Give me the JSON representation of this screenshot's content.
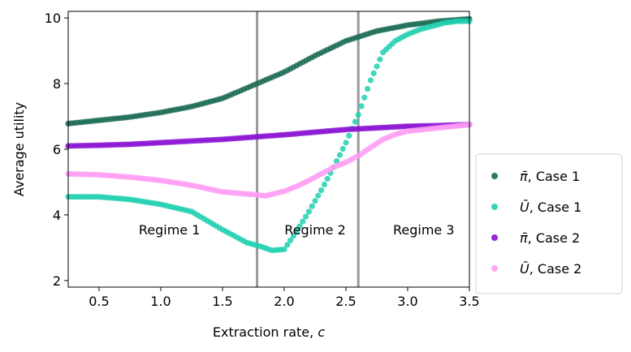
{
  "chart_data": {
    "type": "scatter",
    "xlabel": "Extraction rate, c",
    "ylabel": "Average utility",
    "xlim": [
      0.25,
      3.5
    ],
    "ylim": [
      1.8,
      10.2
    ],
    "x_ticks": [
      0.5,
      1.0,
      1.5,
      2.0,
      2.5,
      3.0,
      3.5
    ],
    "y_ticks": [
      2,
      4,
      6,
      8,
      10
    ],
    "x_tick_labels": [
      "0.5",
      "1.0",
      "1.5",
      "2.0",
      "2.5",
      "3.0",
      "3.5"
    ],
    "y_tick_labels": [
      "2",
      "4",
      "6",
      "8",
      "10"
    ],
    "vertical_lines": [
      1.78,
      2.6
    ],
    "regimes": [
      {
        "label": "Regime 1",
        "x": 1.07,
        "y": 3.55
      },
      {
        "label": "Regime 2",
        "x": 2.25,
        "y": 3.55
      },
      {
        "label": "Regime 3",
        "x": 3.13,
        "y": 3.55
      }
    ],
    "legend_position": "outside-right-bottom",
    "series": [
      {
        "name": "π̄, Case 1",
        "color": "#1a6b55",
        "points": [
          [
            0.25,
            6.78
          ],
          [
            0.5,
            6.88
          ],
          [
            0.75,
            6.98
          ],
          [
            1.0,
            7.12
          ],
          [
            1.25,
            7.3
          ],
          [
            1.5,
            7.55
          ],
          [
            1.75,
            7.95
          ],
          [
            2.0,
            8.35
          ],
          [
            2.25,
            8.85
          ],
          [
            2.5,
            9.3
          ],
          [
            2.75,
            9.6
          ],
          [
            3.0,
            9.78
          ],
          [
            3.25,
            9.9
          ],
          [
            3.5,
            9.97
          ]
        ]
      },
      {
        "name": "Ū, Case 1",
        "color": "#20d0b0",
        "points": [
          [
            0.25,
            4.55
          ],
          [
            0.5,
            4.55
          ],
          [
            0.75,
            4.47
          ],
          [
            1.0,
            4.32
          ],
          [
            1.25,
            4.1
          ],
          [
            1.5,
            3.55
          ],
          [
            1.7,
            3.15
          ],
          [
            1.8,
            3.05
          ],
          [
            1.9,
            2.92
          ],
          [
            2.0,
            2.95
          ],
          [
            2.1,
            3.5
          ],
          [
            2.2,
            4.1
          ],
          [
            2.3,
            4.75
          ],
          [
            2.4,
            5.45
          ],
          [
            2.5,
            6.2
          ],
          [
            2.6,
            7.05
          ],
          [
            2.7,
            8.1
          ],
          [
            2.8,
            8.95
          ],
          [
            2.9,
            9.3
          ],
          [
            3.0,
            9.5
          ],
          [
            3.1,
            9.65
          ],
          [
            3.2,
            9.75
          ],
          [
            3.3,
            9.85
          ],
          [
            3.4,
            9.9
          ],
          [
            3.5,
            9.9
          ]
        ]
      },
      {
        "name": "π̄, Case 2",
        "color": "#8a12d4",
        "points": [
          [
            0.25,
            6.1
          ],
          [
            0.5,
            6.12
          ],
          [
            0.75,
            6.15
          ],
          [
            1.0,
            6.2
          ],
          [
            1.25,
            6.25
          ],
          [
            1.5,
            6.3
          ],
          [
            1.75,
            6.37
          ],
          [
            2.0,
            6.44
          ],
          [
            2.25,
            6.52
          ],
          [
            2.5,
            6.6
          ],
          [
            2.75,
            6.65
          ],
          [
            3.0,
            6.7
          ],
          [
            3.25,
            6.72
          ],
          [
            3.5,
            6.75
          ]
        ]
      },
      {
        "name": "Ū, Case 2",
        "color": "#ff9ef5",
        "points": [
          [
            0.25,
            5.25
          ],
          [
            0.5,
            5.22
          ],
          [
            0.75,
            5.15
          ],
          [
            1.0,
            5.05
          ],
          [
            1.25,
            4.9
          ],
          [
            1.5,
            4.7
          ],
          [
            1.75,
            4.62
          ],
          [
            1.85,
            4.58
          ],
          [
            2.0,
            4.72
          ],
          [
            2.1,
            4.87
          ],
          [
            2.2,
            5.05
          ],
          [
            2.3,
            5.25
          ],
          [
            2.4,
            5.45
          ],
          [
            2.5,
            5.6
          ],
          [
            2.6,
            5.8
          ],
          [
            2.7,
            6.05
          ],
          [
            2.8,
            6.3
          ],
          [
            2.9,
            6.45
          ],
          [
            3.0,
            6.55
          ],
          [
            3.25,
            6.65
          ],
          [
            3.5,
            6.75
          ]
        ]
      }
    ],
    "legend_entries": [
      {
        "symbol": "π̄",
        "text": ", Case 1",
        "color": "#1a6b55"
      },
      {
        "symbol": "Ū",
        "text": ", Case 1",
        "color": "#20d0b0"
      },
      {
        "symbol": "π̄",
        "text": ", Case 2",
        "color": "#8a12d4"
      },
      {
        "symbol": "Ū",
        "text": ", Case 2",
        "color": "#ff9ef5"
      }
    ]
  }
}
